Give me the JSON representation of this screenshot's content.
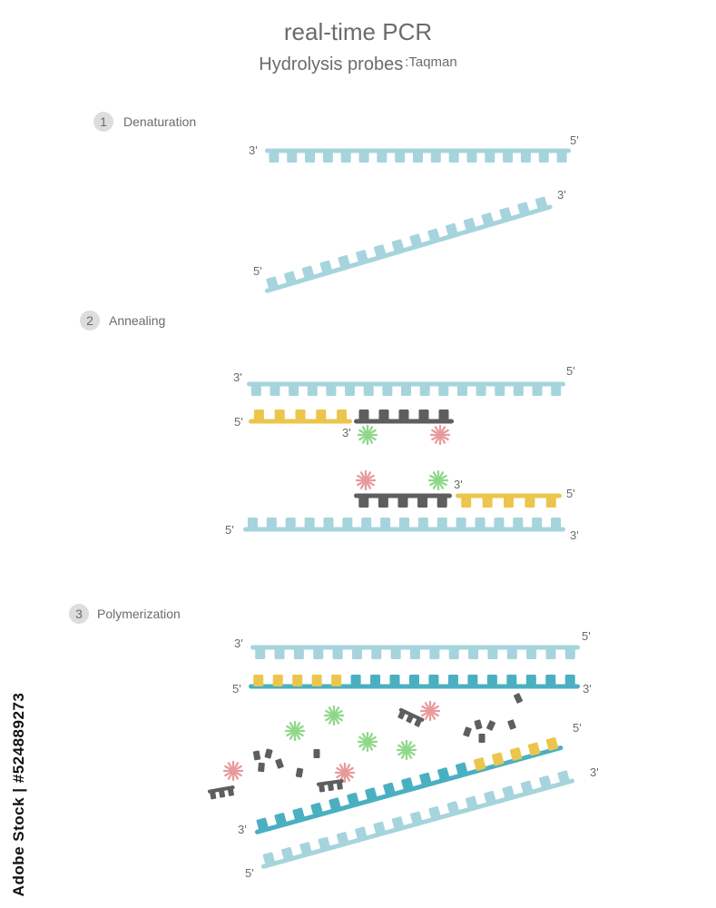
{
  "title": "real-time PCR",
  "subtitle": "Hydrolysis probes",
  "subtitle_note": ":Taqman",
  "steps": [
    {
      "number": "1",
      "label": "Denaturation"
    },
    {
      "number": "2",
      "label": "Annealing"
    },
    {
      "number": "3",
      "label": "Polymerization"
    }
  ],
  "end_labels": {
    "three_prime": "3'",
    "five_prime": "5'"
  },
  "stock_id": "Adobe Stock | #524889273",
  "colors": {
    "template_strand": "#a6d4dc",
    "new_strand": "#4ab0c1",
    "primer": "#ecc54c",
    "probe": "#5e5e5e",
    "reporter_dye": "#8fd88a",
    "quencher_dye": "#e89a9a",
    "step_circle": "#dddddd",
    "label_text": "#6b6b6b"
  }
}
